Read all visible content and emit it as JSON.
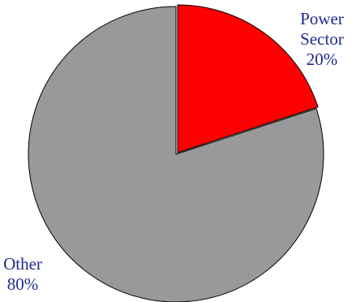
{
  "chart_data": {
    "type": "pie",
    "title": "",
    "slices": [
      {
        "label_lines": [
          "Power",
          "Sector"
        ],
        "percent_label": "20%",
        "value": 20,
        "color": "#ff0000"
      },
      {
        "label_lines": [
          "Other"
        ],
        "percent_label": "80%",
        "value": 80,
        "color": "#999999"
      }
    ],
    "start_angle_deg": 0,
    "direction": "clockwise",
    "exploded_slice": "Power Sector",
    "label_color": "#1f2a8c"
  }
}
